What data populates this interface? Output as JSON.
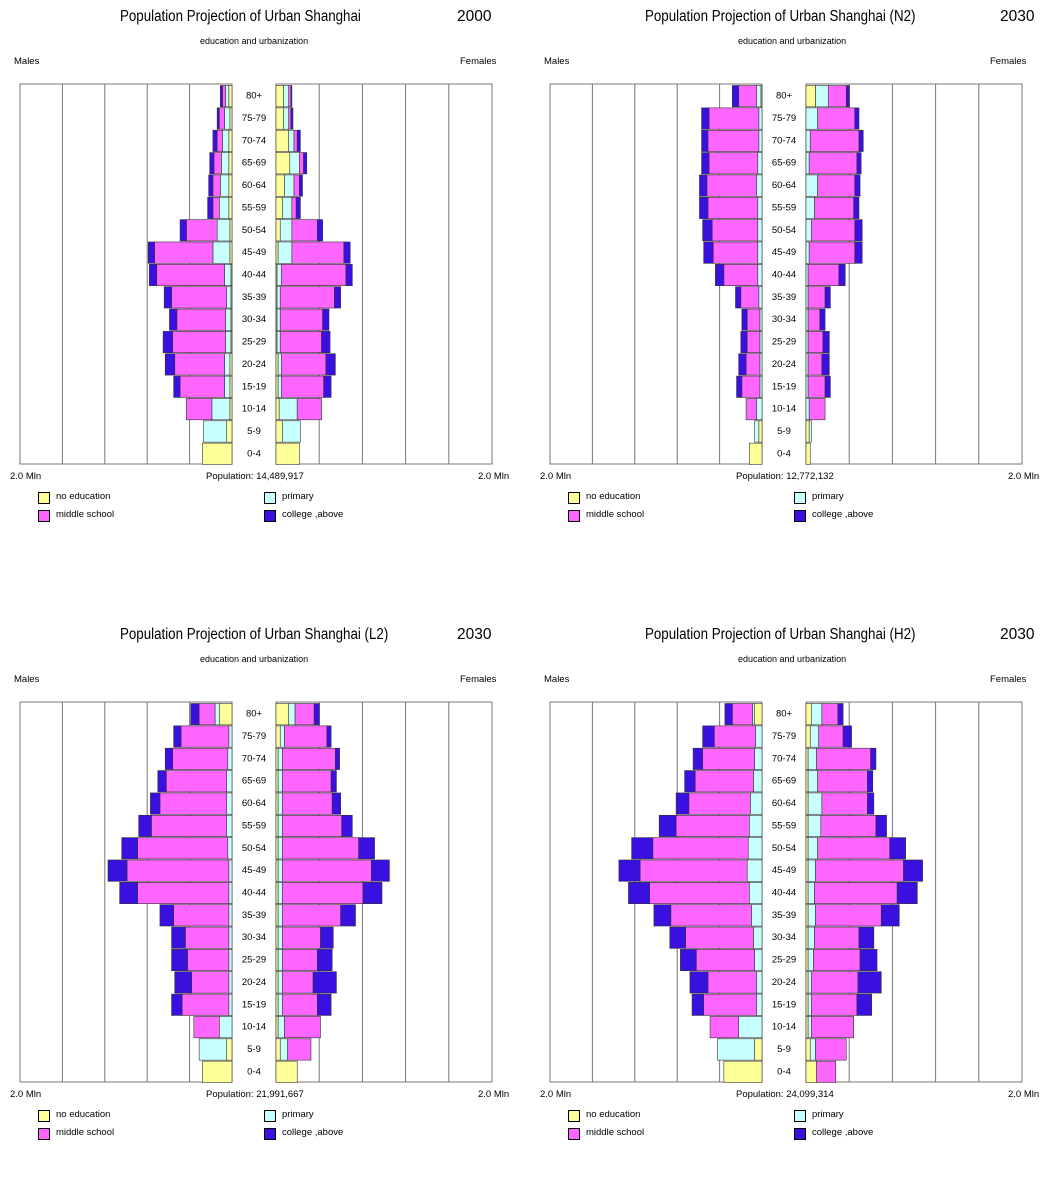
{
  "legend": {
    "categories": [
      "no education",
      "primary",
      "middle school",
      "college ,above"
    ],
    "colors": {
      "no education": "#ffff99",
      "primary": "#c8ffff",
      "middle school": "#ff66ff",
      "college ,above": "#3a10e0"
    }
  },
  "labels": {
    "males": "Males",
    "females": "Females",
    "scale_left": "2.0 Mln",
    "scale_right": "2.0 Mln",
    "population_prefix": "Population:"
  },
  "chart_data": [
    {
      "type": "bar",
      "title": "Population Projection of Urban Shanghai",
      "year": "2000",
      "subtitle": "education and urbanization",
      "population": "14,489,917",
      "xlim": [
        -2.0,
        2.0
      ],
      "x_unit": "Mln",
      "age_groups": [
        "80+",
        "75-79",
        "70-74",
        "65-69",
        "60-64",
        "55-59",
        "50-54",
        "45-49",
        "40-44",
        "35-39",
        "30-34",
        "25-29",
        "20-24",
        "15-19",
        "10-14",
        "5-9",
        "0-4"
      ],
      "males": {
        "no education": [
          0.03,
          0.02,
          0.03,
          0.03,
          0.03,
          0.03,
          0.02,
          0.02,
          0.01,
          0.01,
          0.01,
          0.01,
          0.02,
          0.02,
          0.02,
          0.05,
          0.28
        ],
        "primary": [
          0.03,
          0.05,
          0.06,
          0.07,
          0.08,
          0.09,
          0.12,
          0.16,
          0.06,
          0.04,
          0.05,
          0.05,
          0.05,
          0.05,
          0.17,
          0.22,
          0.0
        ],
        "middle school": [
          0.03,
          0.05,
          0.05,
          0.07,
          0.07,
          0.06,
          0.29,
          0.55,
          0.64,
          0.52,
          0.46,
          0.5,
          0.47,
          0.42,
          0.24,
          0.0,
          0.0
        ],
        "college ,above": [
          0.02,
          0.02,
          0.04,
          0.04,
          0.04,
          0.05,
          0.06,
          0.06,
          0.07,
          0.07,
          0.07,
          0.09,
          0.09,
          0.06,
          0.0,
          0.0,
          0.0
        ]
      },
      "females": {
        "no education": [
          0.07,
          0.07,
          0.12,
          0.13,
          0.08,
          0.06,
          0.04,
          0.02,
          0.01,
          0.01,
          0.01,
          0.01,
          0.02,
          0.02,
          0.03,
          0.06,
          0.22
        ],
        "primary": [
          0.05,
          0.05,
          0.05,
          0.09,
          0.09,
          0.09,
          0.11,
          0.13,
          0.04,
          0.03,
          0.03,
          0.03,
          0.03,
          0.03,
          0.17,
          0.17,
          0.0
        ],
        "middle school": [
          0.02,
          0.02,
          0.03,
          0.04,
          0.05,
          0.04,
          0.24,
          0.49,
          0.61,
          0.51,
          0.4,
          0.39,
          0.42,
          0.4,
          0.23,
          0.0,
          0.0
        ],
        "college ,above": [
          0.01,
          0.02,
          0.03,
          0.03,
          0.03,
          0.04,
          0.05,
          0.06,
          0.06,
          0.06,
          0.06,
          0.08,
          0.09,
          0.07,
          0.0,
          0.0,
          0.0
        ]
      }
    },
    {
      "type": "bar",
      "title": "Population Projection of Urban Shanghai (N2)",
      "year": "2030",
      "subtitle": "education and urbanization",
      "population": "12,772,132",
      "xlim": [
        -2.0,
        2.0
      ],
      "x_unit": "Mln",
      "age_groups": [
        "80+",
        "75-79",
        "70-74",
        "65-69",
        "60-64",
        "55-59",
        "50-54",
        "45-49",
        "40-44",
        "35-39",
        "30-34",
        "25-29",
        "20-24",
        "15-19",
        "10-14",
        "5-9",
        "0-4"
      ],
      "males": {
        "no education": [
          0.01,
          0.0,
          0.0,
          0.0,
          0.0,
          0.0,
          0.0,
          0.0,
          0.0,
          0.0,
          0.0,
          0.0,
          0.0,
          0.0,
          0.0,
          0.03,
          0.12
        ],
        "primary": [
          0.04,
          0.03,
          0.03,
          0.04,
          0.05,
          0.04,
          0.04,
          0.04,
          0.04,
          0.03,
          0.02,
          0.02,
          0.02,
          0.02,
          0.05,
          0.04,
          0.0
        ],
        "middle school": [
          0.17,
          0.47,
          0.48,
          0.46,
          0.47,
          0.47,
          0.43,
          0.42,
          0.32,
          0.17,
          0.12,
          0.12,
          0.13,
          0.17,
          0.1,
          0.0,
          0.0
        ],
        "college ,above": [
          0.06,
          0.07,
          0.06,
          0.07,
          0.07,
          0.08,
          0.09,
          0.09,
          0.08,
          0.05,
          0.05,
          0.06,
          0.07,
          0.05,
          0.0,
          0.0,
          0.0
        ]
      },
      "females": {
        "no education": [
          0.09,
          0.0,
          0.0,
          0.0,
          0.0,
          0.0,
          0.0,
          0.0,
          0.0,
          0.0,
          0.0,
          0.0,
          0.0,
          0.0,
          0.0,
          0.03,
          0.04
        ],
        "primary": [
          0.12,
          0.11,
          0.04,
          0.03,
          0.11,
          0.08,
          0.05,
          0.03,
          0.02,
          0.02,
          0.02,
          0.02,
          0.02,
          0.02,
          0.03,
          0.02,
          0.0
        ],
        "middle school": [
          0.17,
          0.35,
          0.46,
          0.45,
          0.35,
          0.37,
          0.41,
          0.43,
          0.29,
          0.16,
          0.11,
          0.14,
          0.13,
          0.16,
          0.15,
          0.0,
          0.0
        ],
        "college ,above": [
          0.03,
          0.04,
          0.04,
          0.04,
          0.05,
          0.05,
          0.07,
          0.07,
          0.06,
          0.05,
          0.05,
          0.06,
          0.07,
          0.05,
          0.0,
          0.0,
          0.0
        ]
      }
    },
    {
      "type": "bar",
      "title": "Population Projection of Urban Shanghai (L2)",
      "year": "2030",
      "subtitle": "education and urbanization",
      "population": "21,991,667",
      "xlim": [
        -2.0,
        2.0
      ],
      "x_unit": "Mln",
      "age_groups": [
        "80+",
        "75-79",
        "70-74",
        "65-69",
        "60-64",
        "55-59",
        "50-54",
        "45-49",
        "40-44",
        "35-39",
        "30-34",
        "25-29",
        "20-24",
        "15-19",
        "10-14",
        "5-9",
        "0-4"
      ],
      "males": {
        "no education": [
          0.12,
          0.0,
          0.0,
          0.0,
          0.0,
          0.0,
          0.0,
          0.0,
          0.0,
          0.0,
          0.0,
          0.0,
          0.0,
          0.0,
          0.0,
          0.05,
          0.28
        ],
        "primary": [
          0.04,
          0.03,
          0.04,
          0.05,
          0.05,
          0.05,
          0.04,
          0.03,
          0.03,
          0.03,
          0.03,
          0.03,
          0.03,
          0.03,
          0.12,
          0.26,
          0.0
        ],
        "middle school": [
          0.15,
          0.45,
          0.52,
          0.57,
          0.63,
          0.71,
          0.85,
          0.96,
          0.86,
          0.52,
          0.41,
          0.39,
          0.35,
          0.44,
          0.24,
          0.0,
          0.0
        ],
        "college ,above": [
          0.08,
          0.07,
          0.07,
          0.08,
          0.09,
          0.12,
          0.15,
          0.18,
          0.17,
          0.13,
          0.13,
          0.15,
          0.16,
          0.1,
          0.0,
          0.0,
          0.0
        ]
      },
      "females": {
        "no education": [
          0.12,
          0.04,
          0.02,
          0.02,
          0.02,
          0.02,
          0.02,
          0.02,
          0.02,
          0.02,
          0.02,
          0.02,
          0.02,
          0.02,
          0.02,
          0.04,
          0.2
        ],
        "primary": [
          0.06,
          0.04,
          0.04,
          0.04,
          0.04,
          0.04,
          0.04,
          0.04,
          0.04,
          0.04,
          0.04,
          0.04,
          0.04,
          0.04,
          0.06,
          0.07,
          0.0
        ],
        "middle school": [
          0.18,
          0.4,
          0.5,
          0.46,
          0.47,
          0.56,
          0.72,
          0.84,
          0.76,
          0.55,
          0.36,
          0.33,
          0.29,
          0.33,
          0.34,
          0.22,
          0.0
        ],
        "college ,above": [
          0.05,
          0.04,
          0.04,
          0.05,
          0.08,
          0.1,
          0.15,
          0.17,
          0.18,
          0.14,
          0.12,
          0.14,
          0.22,
          0.13,
          0.0,
          0.0,
          0.0
        ]
      }
    },
    {
      "type": "bar",
      "title": "Population Projection of Urban Shanghai (H2)",
      "year": "2030",
      "subtitle": "education and urbanization",
      "population": "24,099,314",
      "xlim": [
        -2.0,
        2.0
      ],
      "x_unit": "Mln",
      "age_groups": [
        "80+",
        "75-79",
        "70-74",
        "65-69",
        "60-64",
        "55-59",
        "50-54",
        "45-49",
        "40-44",
        "35-39",
        "30-34",
        "25-29",
        "20-24",
        "15-19",
        "10-14",
        "5-9",
        "0-4"
      ],
      "males": {
        "no education": [
          0.07,
          0.0,
          0.0,
          0.0,
          0.0,
          0.0,
          0.0,
          0.0,
          0.0,
          0.0,
          0.0,
          0.0,
          0.0,
          0.0,
          0.0,
          0.07,
          0.36
        ],
        "primary": [
          0.02,
          0.06,
          0.07,
          0.08,
          0.11,
          0.12,
          0.13,
          0.14,
          0.12,
          0.1,
          0.08,
          0.07,
          0.05,
          0.05,
          0.22,
          0.35,
          0.0
        ],
        "middle school": [
          0.19,
          0.39,
          0.49,
          0.55,
          0.58,
          0.69,
          0.9,
          1.01,
          0.94,
          0.76,
          0.64,
          0.55,
          0.46,
          0.5,
          0.27,
          0.0,
          0.0
        ],
        "college ,above": [
          0.07,
          0.11,
          0.09,
          0.1,
          0.12,
          0.16,
          0.2,
          0.2,
          0.2,
          0.16,
          0.15,
          0.15,
          0.17,
          0.11,
          0.0,
          0.0,
          0.0
        ]
      },
      "females": {
        "no education": [
          0.05,
          0.04,
          0.02,
          0.02,
          0.02,
          0.02,
          0.02,
          0.02,
          0.02,
          0.02,
          0.02,
          0.02,
          0.02,
          0.02,
          0.02,
          0.04,
          0.1
        ],
        "primary": [
          0.1,
          0.08,
          0.08,
          0.09,
          0.13,
          0.12,
          0.09,
          0.07,
          0.06,
          0.07,
          0.06,
          0.05,
          0.03,
          0.03,
          0.03,
          0.05,
          0.0
        ],
        "middle school": [
          0.15,
          0.23,
          0.51,
          0.47,
          0.43,
          0.52,
          0.68,
          0.83,
          0.78,
          0.62,
          0.42,
          0.44,
          0.44,
          0.43,
          0.4,
          0.29,
          0.18
        ],
        "college ,above": [
          0.05,
          0.08,
          0.05,
          0.05,
          0.06,
          0.1,
          0.15,
          0.18,
          0.19,
          0.17,
          0.14,
          0.16,
          0.22,
          0.14,
          0.0,
          0.0,
          0.0
        ]
      }
    }
  ]
}
